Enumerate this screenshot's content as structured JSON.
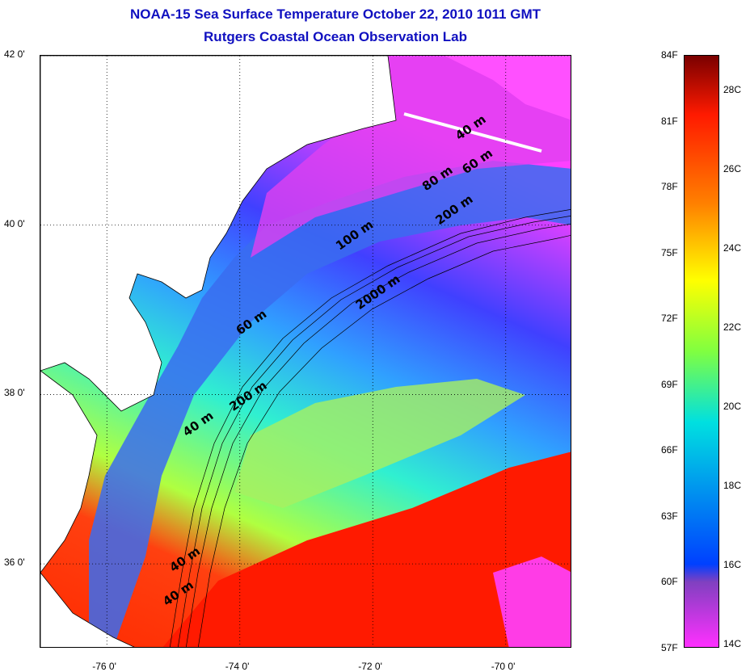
{
  "title_line1": "NOAA-15 Sea Surface Temperature October 22, 2010 1011 GMT",
  "title_line2": "Rutgers Coastal Ocean Observation Lab",
  "map": {
    "lat_ticks": [
      {
        "label": "42 0'",
        "value": 42
      },
      {
        "label": "40 0'",
        "value": 40
      },
      {
        "label": "38 0'",
        "value": 38
      },
      {
        "label": "36 0'",
        "value": 36
      }
    ],
    "lon_ticks": [
      {
        "label": "-76 0'",
        "value": -76
      },
      {
        "label": "-74 0'",
        "value": -74
      },
      {
        "label": "-72 0'",
        "value": -72
      },
      {
        "label": "-70 0'",
        "value": -70
      }
    ],
    "lon_range": [
      -77,
      -69
    ],
    "lat_range": [
      35,
      42
    ],
    "contour_labels": [
      {
        "text": "40 m",
        "lon": -70.7,
        "lat": 41.0
      },
      {
        "text": "60 m",
        "lon": -70.6,
        "lat": 40.6
      },
      {
        "text": "80 m",
        "lon": -71.2,
        "lat": 40.4
      },
      {
        "text": "200 m",
        "lon": -71.0,
        "lat": 40.0
      },
      {
        "text": "100 m",
        "lon": -72.5,
        "lat": 39.7
      },
      {
        "text": "2000 m",
        "lon": -72.2,
        "lat": 39.0
      },
      {
        "text": "60 m",
        "lon": -74.0,
        "lat": 38.7
      },
      {
        "text": "200 m",
        "lon": -74.1,
        "lat": 37.8
      },
      {
        "text": "40 m",
        "lon": -74.8,
        "lat": 37.5
      },
      {
        "text": "40 m",
        "lon": -75.0,
        "lat": 35.9
      },
      {
        "text": "40 m",
        "lon": -75.1,
        "lat": 35.5
      }
    ]
  },
  "colorbar": {
    "fahrenheit_labels": [
      "84F",
      "81F",
      "78F",
      "75F",
      "72F",
      "69F",
      "66F",
      "63F",
      "60F",
      "57F"
    ],
    "celsius_labels": [
      "28C",
      "26C",
      "24C",
      "22C",
      "20C",
      "18C",
      "16C",
      "14C"
    ],
    "f_range": [
      57,
      84
    ],
    "colors": {
      "top": "#7a0000",
      "red": "#ff1a00",
      "orange": "#ff8000",
      "yellow": "#ffff00",
      "green": "#80ff40",
      "cyan": "#00e0e0",
      "blue": "#0040ff",
      "purple": "#8040c0",
      "magenta": "#ff30ff"
    }
  }
}
